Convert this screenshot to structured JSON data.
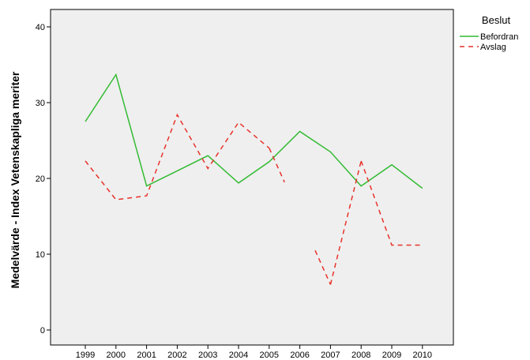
{
  "chart_data": {
    "type": "line",
    "x": [
      "1999",
      "2000",
      "2001",
      "2002",
      "2003",
      "2004",
      "2005",
      "2006",
      "2007",
      "2008",
      "2009",
      "2010"
    ],
    "ylabel": "Medelvärde - Index Vetenskapliga meriter",
    "ylim": [
      0,
      42
    ],
    "yticks": [
      0,
      10,
      20,
      30,
      40
    ],
    "grid": false,
    "legend": {
      "title": "Beslut",
      "placement": "top-right"
    },
    "series": [
      {
        "name": "Befordran",
        "color": "#33bb33",
        "style": "solid",
        "values": [
          27.5,
          33.7,
          19.0,
          21.0,
          23.0,
          19.4,
          22.2,
          26.2,
          23.5,
          19.0,
          21.8,
          18.7
        ]
      },
      {
        "name": "Avslag",
        "color": "#e8332b",
        "style": "dashed",
        "values": [
          22.3,
          17.2,
          17.7,
          28.4,
          21.3,
          27.4,
          24.0,
          null,
          null,
          22.3,
          11.2,
          11.2
        ],
        "extra_segments": [
          {
            "from": {
              "x": "2005",
              "y": 24.0
            },
            "to": {
              "x": "2005.5",
              "y": 19.5
            }
          },
          {
            "from": {
              "x": "2006.5",
              "y": 10.5
            },
            "to": {
              "x": "2007",
              "y": 6.0
            }
          },
          {
            "from": {
              "x": "2007",
              "y": 6.0
            },
            "to": {
              "x": "2008",
              "y": 22.3
            }
          }
        ]
      }
    ]
  }
}
